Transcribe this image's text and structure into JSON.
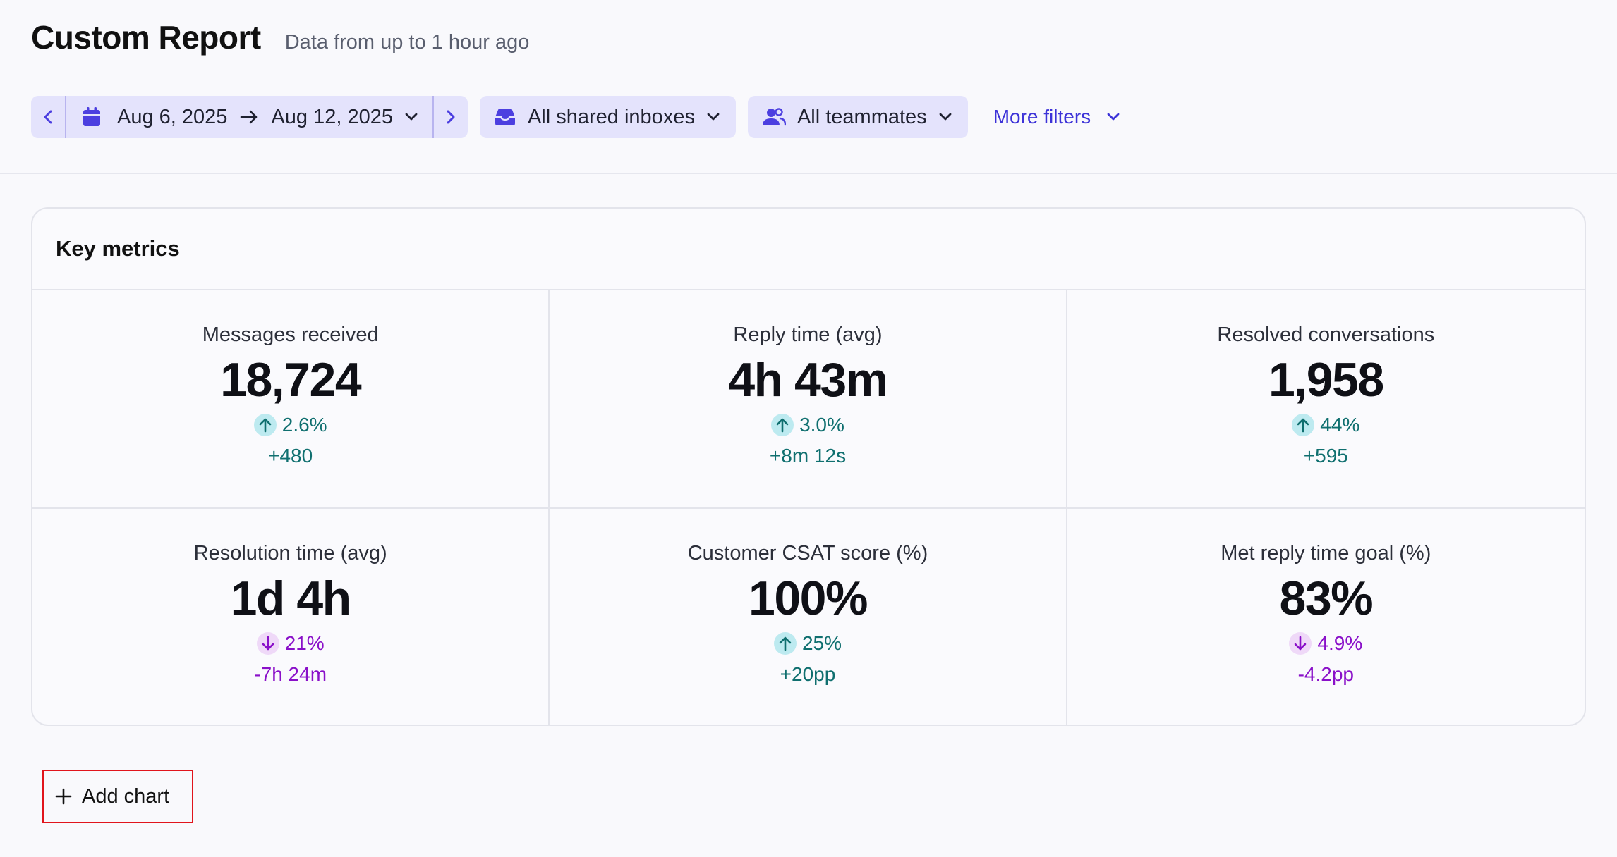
{
  "header": {
    "title": "Custom Report",
    "subtitle": "Data from up to 1 hour ago"
  },
  "filters": {
    "date_start": "Aug 6, 2025",
    "date_arrow": "→",
    "date_end": "Aug 12, 2025",
    "inboxes": "All shared inboxes",
    "teammates": "All teammates",
    "more": "More filters"
  },
  "key_metrics": {
    "title": "Key metrics",
    "metrics": [
      {
        "label": "Messages received",
        "value": "18,724",
        "change": "2.6%",
        "delta": "+480",
        "direction": "up"
      },
      {
        "label": "Reply time (avg)",
        "value": "4h 43m",
        "change": "3.0%",
        "delta": "+8m 12s",
        "direction": "up"
      },
      {
        "label": "Resolved conversations",
        "value": "1,958",
        "change": "44%",
        "delta": "+595",
        "direction": "up"
      },
      {
        "label": "Resolution time (avg)",
        "value": "1d 4h",
        "change": "21%",
        "delta": "-7h 24m",
        "direction": "down"
      },
      {
        "label": "Customer CSAT score (%)",
        "value": "100%",
        "change": "25%",
        "delta": "+20pp",
        "direction": "up"
      },
      {
        "label": "Met reply time goal (%)",
        "value": "83%",
        "change": "4.9%",
        "delta": "-4.2pp",
        "direction": "down"
      }
    ]
  },
  "add_chart": {
    "label": "Add chart"
  },
  "colors": {
    "accent": "#3d33d8",
    "filter_bg": "#e4e3fc",
    "positive": "#0f6f6f",
    "negative": "#8a10c9",
    "highlight_border": "#e1151c"
  },
  "icons": {
    "date_prev": "chevron-left-icon",
    "date_next": "chevron-right-icon",
    "calendar": "calendar-icon",
    "inbox": "inbox-icon",
    "teammates": "users-icon",
    "dropdown": "chevron-down-icon",
    "trend_up": "arrow-up-icon",
    "trend_down": "arrow-down-icon",
    "add": "plus-icon"
  }
}
